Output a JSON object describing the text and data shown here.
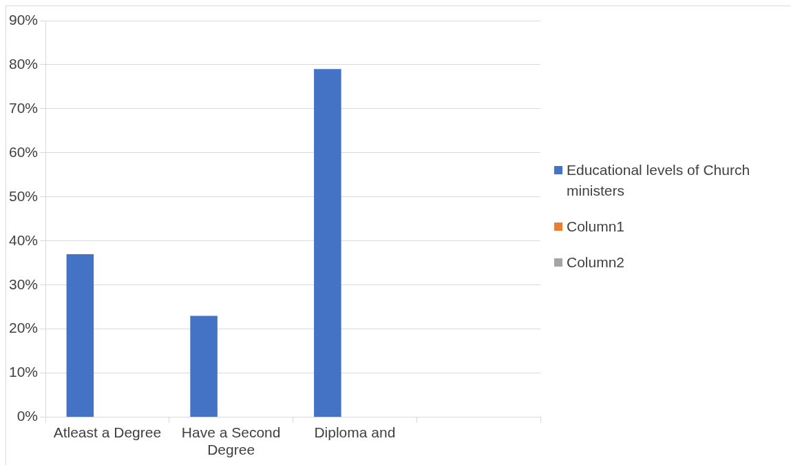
{
  "chart_data": {
    "type": "bar",
    "categories": [
      "Atleast a Degree",
      "Have a Second Degree",
      "Diploma and",
      null
    ],
    "series": [
      {
        "name": "Educational levels of Church ministers",
        "color": "#4472c4",
        "values": [
          37,
          23,
          79,
          null
        ]
      },
      {
        "name": "Column1",
        "color": "#ed7d31",
        "values": [
          null,
          null,
          null,
          null
        ]
      },
      {
        "name": "Column2",
        "color": "#a5a5a5",
        "values": [
          null,
          null,
          null,
          null
        ]
      }
    ],
    "ylim": [
      0,
      90
    ],
    "yticks": [
      {
        "value": 0,
        "label": "0%"
      },
      {
        "value": 10,
        "label": "10%"
      },
      {
        "value": 20,
        "label": "20%"
      },
      {
        "value": 30,
        "label": "30%"
      },
      {
        "value": 40,
        "label": "40%"
      },
      {
        "value": 50,
        "label": "50%"
      },
      {
        "value": 60,
        "label": "60%"
      },
      {
        "value": 70,
        "label": "70%"
      },
      {
        "value": 80,
        "label": "80%"
      },
      {
        "value": 90,
        "label": "90%"
      }
    ],
    "grid": "y",
    "legend": "right"
  }
}
